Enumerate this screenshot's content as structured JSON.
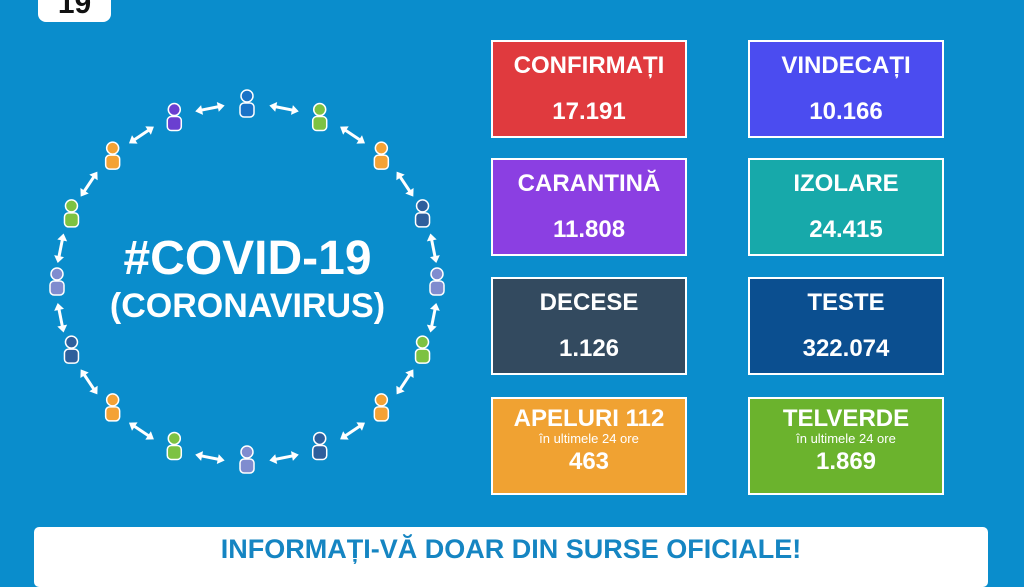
{
  "day_badge": "19",
  "title": {
    "line1": "#COVID-19",
    "line2": "(CORONAVIRUS)"
  },
  "stats": [
    {
      "label": "CONFIRMAȚI",
      "value": "17.191",
      "color": "#e03a3e"
    },
    {
      "label": "VINDECAȚI",
      "value": "10.166",
      "color": "#4b4cf0"
    },
    {
      "label": "CARANTINĂ",
      "value": "11.808",
      "color": "#8b3fe2"
    },
    {
      "label": "IZOLARE",
      "value": "24.415",
      "color": "#17a9aa"
    },
    {
      "label": "DECESE",
      "value": "1.126",
      "color": "#334a5f"
    },
    {
      "label": "TESTE",
      "value": "322.074",
      "color": "#0b4f90"
    },
    {
      "label": "APELURI 112",
      "sub": "în ultimele 24 ore",
      "value": "463",
      "color": "#f0a232"
    },
    {
      "label": "TELVERDE",
      "sub": "în ultimele 24 ore",
      "value": "1.869",
      "color": "#6bb32d"
    }
  ],
  "banner": "INFORMAȚI-VĂ DOAR DIN SURSE OFICIALE!"
}
